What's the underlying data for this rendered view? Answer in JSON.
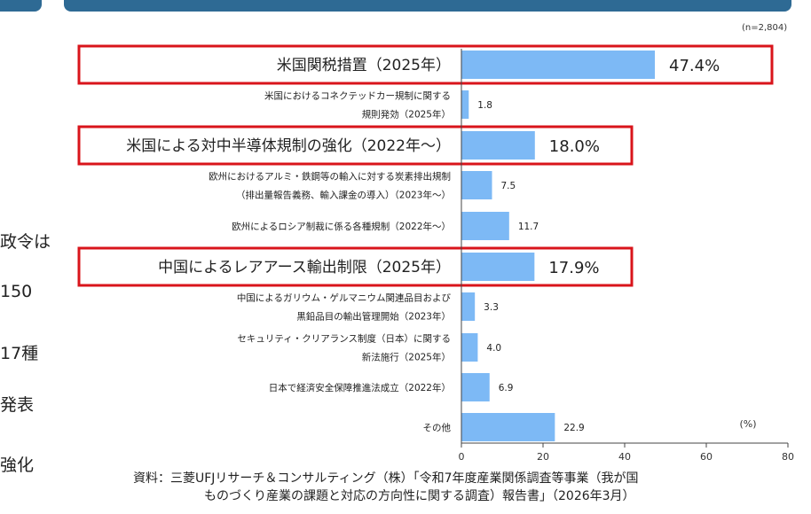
{
  "left_fragments": [
    "政令は",
    "150",
    "17種",
    "発表",
    "強化"
  ],
  "chart_data": {
    "type": "bar",
    "orientation": "horizontal",
    "sample_note": "(n=2,804)",
    "unit_label": "(%)",
    "xlim": [
      0,
      80
    ],
    "xticks": [
      0,
      20,
      40,
      60,
      80
    ],
    "bars": [
      {
        "label": [
          "米国関税措置（2025年）"
        ],
        "value": 47.4,
        "value_label": "47.4%",
        "highlight": true
      },
      {
        "label": [
          "米国におけるコネクテッドカー規制に関する",
          "規則発効（2025年）"
        ],
        "value": 1.8,
        "value_label": "1.8",
        "highlight": false
      },
      {
        "label": [
          "米国による対中半導体規制の強化（2022年～）"
        ],
        "value": 18.0,
        "value_label": "18.0%",
        "highlight": true
      },
      {
        "label": [
          "欧州におけるアルミ・鉄鋼等の輸入に対する炭素排出規制",
          "（排出量報告義務、輸入課金の導入）（2023年～）"
        ],
        "value": 7.5,
        "value_label": "7.5",
        "highlight": false
      },
      {
        "label": [
          "欧州によるロシア制裁に係る各種規制（2022年～）"
        ],
        "value": 11.7,
        "value_label": "11.7",
        "highlight": false
      },
      {
        "label": [
          "中国によるレアアース輸出制限（2025年）"
        ],
        "value": 17.9,
        "value_label": "17.9%",
        "highlight": true
      },
      {
        "label": [
          "中国によるガリウム・ゲルマニウム関連品目および",
          "黒鉛品目の輸出管理開始（2023年）"
        ],
        "value": 3.3,
        "value_label": "3.3",
        "highlight": false
      },
      {
        "label": [
          "セキュリティ・クリアランス制度（日本）に関する",
          "新法施行（2025年）"
        ],
        "value": 4.0,
        "value_label": "4.0",
        "highlight": false
      },
      {
        "label": [
          "日本で経済安全保障推進法成立（2022年）"
        ],
        "value": 6.9,
        "value_label": "6.9",
        "highlight": false
      },
      {
        "label": [
          "その他"
        ],
        "value": 22.9,
        "value_label": "22.9",
        "highlight": false
      }
    ],
    "colors": {
      "bar": "#7db9f5",
      "highlight_box": "#d9141b",
      "axis": "#444444"
    }
  },
  "source": {
    "line1": "資料：三菱UFJリサーチ＆コンサルティング（株）「令和7年度産業関係調査等事業（我が国",
    "line2": "ものづくり産業の課題と対応の方向性に関する調査）報告書」（2026年3月）"
  }
}
